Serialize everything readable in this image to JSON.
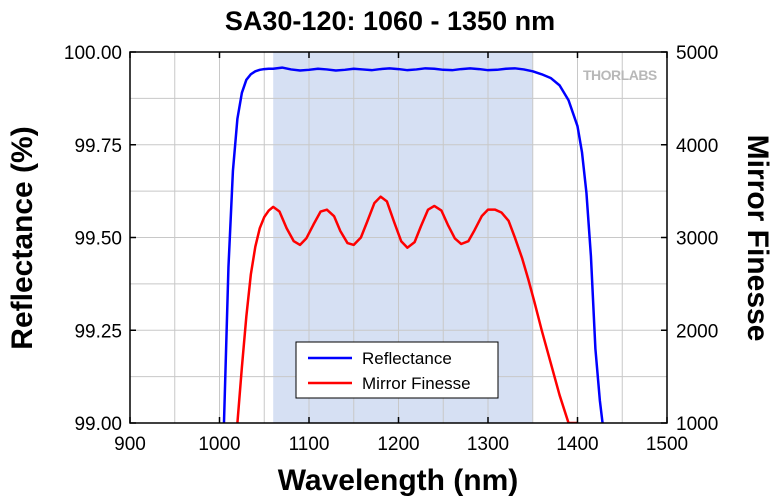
{
  "chart_data": {
    "type": "line",
    "title": "SA30-120: 1060 - 1350 nm",
    "xlabel": "Wavelength (nm)",
    "ylabel_left": "Reflectance (%)",
    "ylabel_right": "Mirror Finesse",
    "xlim": [
      900,
      1500
    ],
    "ylim_left": [
      99.0,
      100.0
    ],
    "ylim_right": [
      1000,
      5000
    ],
    "x_ticks": [
      "900",
      "1000",
      "1100",
      "1200",
      "1300",
      "1400",
      "1500"
    ],
    "y_left_ticks": [
      "99.00",
      "99.25",
      "99.50",
      "99.75",
      "100.00"
    ],
    "y_right_ticks": [
      "1000",
      "2000",
      "3000",
      "4000",
      "5000"
    ],
    "grid": true,
    "legend_placement": "bottom-center",
    "highlight_band": {
      "x": [
        1060,
        1350
      ],
      "color": "#d6e0f3"
    },
    "brand_text": "THORLABS",
    "series": [
      {
        "name": "Reflectance",
        "axis": "left",
        "color": "#0000ff",
        "x": [
          1005,
          1010,
          1015,
          1020,
          1025,
          1030,
          1035,
          1040,
          1045,
          1050,
          1055,
          1060,
          1070,
          1080,
          1090,
          1100,
          1110,
          1120,
          1130,
          1140,
          1150,
          1160,
          1170,
          1180,
          1190,
          1200,
          1210,
          1220,
          1230,
          1240,
          1250,
          1260,
          1270,
          1280,
          1290,
          1300,
          1310,
          1320,
          1330,
          1340,
          1350,
          1360,
          1370,
          1380,
          1390,
          1400,
          1405,
          1410,
          1415,
          1420,
          1425,
          1428
        ],
        "y": [
          99.0,
          99.42,
          99.68,
          99.82,
          99.89,
          99.925,
          99.94,
          99.948,
          99.952,
          99.954,
          99.955,
          99.955,
          99.958,
          99.953,
          99.95,
          99.952,
          99.955,
          99.953,
          99.95,
          99.952,
          99.955,
          99.953,
          99.951,
          99.954,
          99.956,
          99.954,
          99.951,
          99.953,
          99.956,
          99.955,
          99.952,
          99.951,
          99.954,
          99.956,
          99.954,
          99.951,
          99.952,
          99.955,
          99.956,
          99.953,
          99.948,
          99.94,
          99.93,
          99.91,
          99.87,
          99.8,
          99.73,
          99.62,
          99.45,
          99.2,
          99.06,
          99.0
        ]
      },
      {
        "name": "Mirror Finesse",
        "axis": "right",
        "color": "#ff0000",
        "x": [
          1020,
          1025,
          1030,
          1035,
          1040,
          1045,
          1050,
          1055,
          1060,
          1067,
          1075,
          1083,
          1090,
          1097,
          1105,
          1113,
          1120,
          1128,
          1135,
          1143,
          1150,
          1158,
          1165,
          1173,
          1180,
          1187,
          1195,
          1203,
          1210,
          1218,
          1225,
          1233,
          1240,
          1248,
          1255,
          1263,
          1270,
          1278,
          1285,
          1293,
          1300,
          1308,
          1315,
          1323,
          1330,
          1338,
          1345,
          1352,
          1360,
          1370,
          1380,
          1390,
          1400
        ],
        "y": [
          1000,
          1600,
          2150,
          2600,
          2900,
          3100,
          3220,
          3290,
          3330,
          3280,
          3100,
          2960,
          2920,
          2990,
          3140,
          3280,
          3300,
          3230,
          3070,
          2940,
          2920,
          3000,
          3170,
          3370,
          3440,
          3390,
          3170,
          2960,
          2890,
          2950,
          3120,
          3300,
          3340,
          3290,
          3140,
          2990,
          2930,
          2960,
          3080,
          3230,
          3300,
          3300,
          3270,
          3180,
          3000,
          2780,
          2550,
          2300,
          2000,
          1650,
          1300,
          1000,
          1000
        ]
      }
    ]
  }
}
